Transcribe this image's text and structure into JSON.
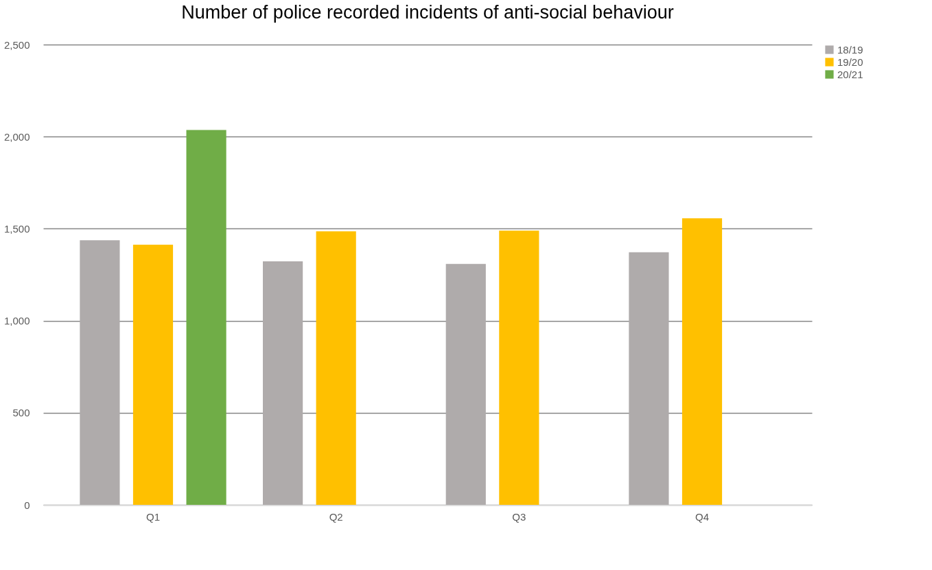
{
  "chart_data": {
    "type": "bar",
    "title": "Number of police recorded incidents of anti-social behaviour",
    "categories": [
      "Q1",
      "Q2",
      "Q3",
      "Q4"
    ],
    "series": [
      {
        "name": "18/19",
        "color": "#afabab",
        "values": [
          1437,
          1323,
          1309,
          1372
        ]
      },
      {
        "name": "19/20",
        "color": "#ffc000",
        "values": [
          1413,
          1486,
          1489,
          1556
        ]
      },
      {
        "name": "20/21",
        "color": "#70ad47",
        "values": [
          2036,
          null,
          null,
          null
        ]
      }
    ],
    "ylim": [
      0,
      2500
    ],
    "yticks": [
      {
        "value": 0,
        "label": "0"
      },
      {
        "value": 500,
        "label": "500"
      },
      {
        "value": 1000,
        "label": "1,000"
      },
      {
        "value": 1500,
        "label": "1,500"
      },
      {
        "value": 2000,
        "label": "2,000"
      },
      {
        "value": 2500,
        "label": "2,500"
      }
    ],
    "grid": "y",
    "legend": "right"
  }
}
